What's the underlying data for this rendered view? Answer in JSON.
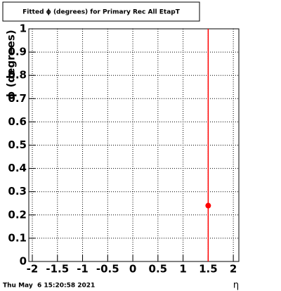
{
  "chart_data": {
    "type": "scatter",
    "title": "Fitted ϕ (degrees) for Primary Rec All EtapT",
    "y_label": "ϕ (degrees)",
    "x_label": "η",
    "footer": "Thu May  6 15:20:58 2021",
    "x": [
      1.5
    ],
    "values": [
      0.24
    ],
    "color": "#ff0000",
    "vline": {
      "x": 1.5,
      "color": "#ff0000"
    },
    "xlim": [
      -2.07,
      2.11
    ],
    "xticks": [
      -2,
      -1.5,
      -1,
      -0.5,
      0,
      0.5,
      1,
      1.5,
      2
    ],
    "ylim": [
      0,
      1
    ],
    "yticks": [
      0,
      0.1,
      0.2,
      0.3,
      0.4,
      0.5,
      0.6,
      0.7,
      0.8,
      0.9,
      1
    ],
    "grid": true
  }
}
